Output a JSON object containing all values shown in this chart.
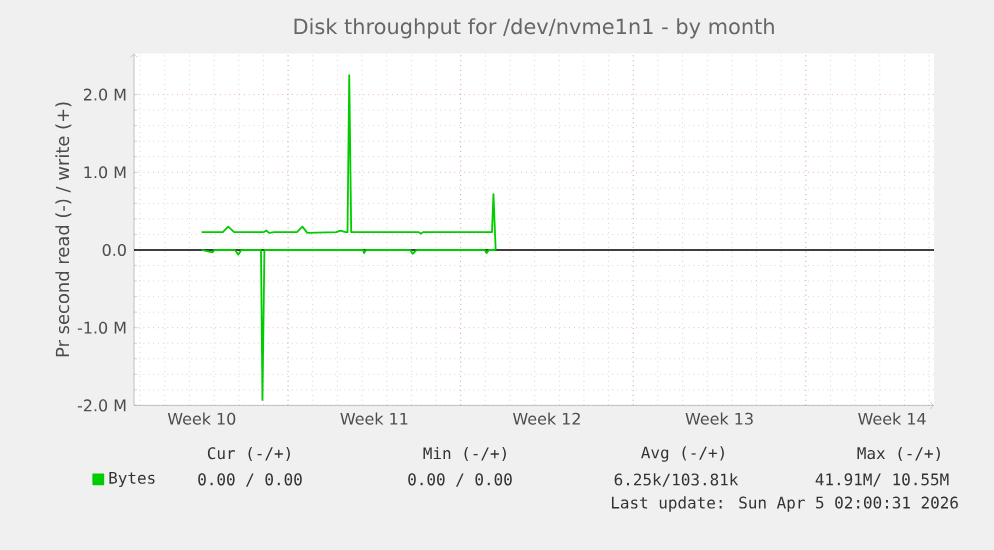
{
  "chart_data": {
    "type": "line",
    "title": "Disk throughput for /dev/nvme1n1 - by month",
    "ylabel": "Pr second read (-) / write (+)",
    "xlim": [
      "2026-03-02T18:00",
      "2026-04-04T04:48"
    ],
    "ylim": [
      -2.0,
      2.53
    ],
    "xticks": [
      {
        "value": "2026-03-05T12:00",
        "label": "Week 10"
      },
      {
        "value": "2026-03-09",
        "label": null
      },
      {
        "value": "2026-03-12T12:00",
        "label": "Week 11"
      },
      {
        "value": "2026-03-16",
        "label": null
      },
      {
        "value": "2026-03-19T12:00",
        "label": "Week 12"
      },
      {
        "value": "2026-03-23",
        "label": null
      },
      {
        "value": "2026-03-26T12:00",
        "label": "Week 13"
      },
      {
        "value": "2026-03-30",
        "label": null
      },
      {
        "value": "2026-04-02T12:00",
        "label": "Week 14"
      }
    ],
    "yticks": [
      {
        "value": -2,
        "label": "-2.0 M"
      },
      {
        "value": -1,
        "label": "-1.0 M"
      },
      {
        "value": 0,
        "label": "0.0"
      },
      {
        "value": 1,
        "label": "1.0 M"
      },
      {
        "value": 2,
        "label": "2.0 M"
      }
    ],
    "grid": true,
    "legend": "bottom left",
    "marker": "none",
    "line_style": "solid",
    "ref_lines": [
      {
        "axis": "y",
        "value": 0,
        "color": "#000000"
      }
    ],
    "series": [
      {
        "name": "Bytes",
        "color": "#00cc00",
        "x": [
          "2026-03-05T11:46",
          "2026-03-06T08:24",
          "2026-03-06T13:41",
          "2026-03-06T19:26",
          "2026-03-08T00:29",
          "2026-03-08T02:38",
          "2026-03-08T05:31",
          "2026-03-08T10:34",
          "2026-03-09T08:38",
          "2026-03-09T13:55",
          "2026-03-09T18:43",
          "2026-03-10T22:48",
          "2026-03-11T02:53",
          "2026-03-11T07:55",
          "2026-03-11T09:50",
          "2026-03-11T11:31",
          "2026-03-11T13:26",
          "2026-03-13T21:07",
          "2026-03-14T07:12",
          "2026-03-14T09:07",
          "2026-03-14T11:17",
          "2026-03-16T09:22",
          "2026-03-17T06:29",
          "2026-03-17T07:55",
          "2026-03-17T10:05"
        ],
        "values": [
          0.23,
          0.23,
          0.3,
          0.23,
          0.23,
          0.25,
          0.22,
          0.23,
          0.23,
          0.3,
          0.22,
          0.23,
          0.25,
          0.23,
          0.23,
          2.25,
          0.23,
          0.23,
          0.23,
          0.21,
          0.23,
          0.23,
          0.23,
          0.72,
          0.0
        ]
      },
      {
        "color": "#00cc00",
        "x": [
          "2026-03-05T11:46",
          "2026-03-05T22:19",
          "2026-03-06T00:14",
          "2026-03-06T20:24",
          "2026-03-06T23:31",
          "2026-03-07T02:24",
          "2026-03-07T21:36",
          "2026-03-07T23:02",
          "2026-03-08T00:58",
          "2026-03-12T00:58",
          "2026-03-12T01:55",
          "2026-03-12T03:50",
          "2026-03-13T23:02",
          "2026-03-14T01:12",
          "2026-03-14T05:02",
          "2026-03-16T23:17",
          "2026-03-17T01:12",
          "2026-03-17T03:22",
          "2026-03-17T10:05"
        ],
        "values": [
          0,
          -0.03,
          0,
          0,
          -0.06,
          0,
          0,
          -1.93,
          0,
          0,
          -0.04,
          0,
          0,
          -0.05,
          0,
          0,
          -0.04,
          0,
          0
        ]
      }
    ],
    "annotations": [
      "Cur (-/+)",
      "Min (-/+)",
      "Avg (-/+)",
      "Max (-/+)",
      "0.00 /  0.00",
      "0.00 /  0.00",
      "6.25k/103.81k",
      "41.91M/ 10.55M",
      "Last update: Sun Apr  5 02:00:31 2026"
    ]
  }
}
